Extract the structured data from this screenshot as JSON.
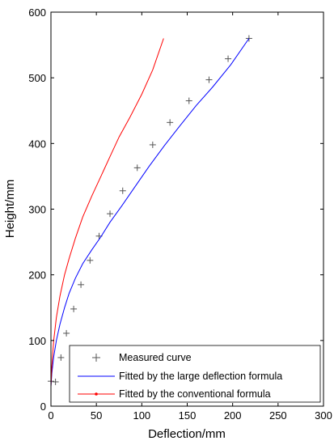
{
  "chart_data": {
    "type": "line",
    "xlabel": "Deflection/mm",
    "ylabel": "Height/mm",
    "xlim": [
      0,
      300
    ],
    "ylim": [
      0,
      600
    ],
    "x_ticks": [
      "0",
      "50",
      "100",
      "150",
      "200",
      "250",
      "300"
    ],
    "y_ticks": [
      "0",
      "100",
      "200",
      "300",
      "400",
      "500",
      "600"
    ],
    "grid": false,
    "legend_placement": "bottom-right",
    "series": [
      {
        "name": "Measured curve",
        "style": "markers-plus",
        "color": "#555555",
        "x": [
          0,
          5,
          11,
          17,
          25,
          33,
          43,
          53,
          65,
          79,
          95,
          112,
          131,
          152,
          174,
          195,
          218
        ],
        "y": [
          38,
          37,
          74,
          111,
          148,
          185,
          222,
          259,
          293,
          328,
          363,
          398,
          432,
          465,
          497,
          529,
          560
        ]
      },
      {
        "name": "Fitted by the large deflection formula",
        "style": "line",
        "color": "#0000ff",
        "x": [
          0,
          1,
          3,
          6,
          10,
          15,
          20,
          27,
          35,
          45,
          55,
          65,
          78,
          92,
          108,
          125,
          142,
          160,
          178,
          198,
          218
        ],
        "y": [
          30,
          50,
          75,
          100,
          125,
          150,
          172,
          195,
          217,
          238,
          258,
          280,
          305,
          333,
          365,
          397,
          427,
          458,
          486,
          520,
          560
        ]
      },
      {
        "name": "Fitted by the conventional formula",
        "style": "line",
        "color": "#ff0000",
        "x": [
          0,
          1,
          3,
          6,
          10,
          15,
          20,
          27,
          35,
          45,
          55,
          65,
          75,
          87,
          100,
          112,
          124
        ],
        "y": [
          30,
          62,
          100,
          135,
          168,
          200,
          225,
          256,
          288,
          320,
          350,
          380,
          410,
          440,
          475,
          512,
          560
        ]
      }
    ]
  }
}
